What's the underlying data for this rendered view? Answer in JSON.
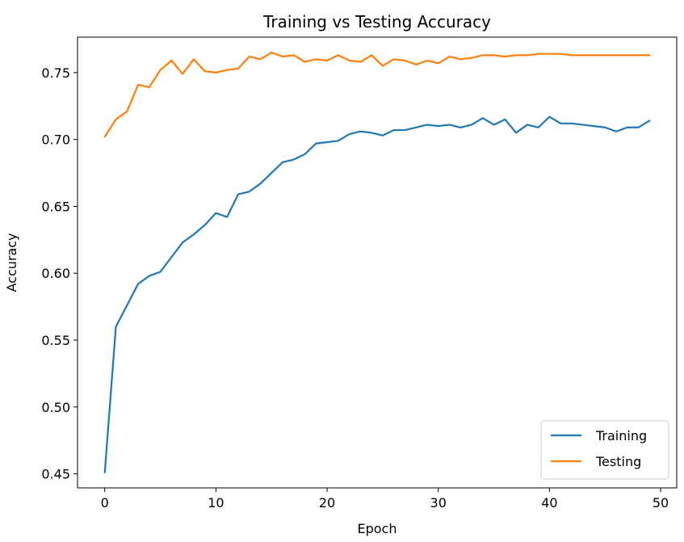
{
  "chart_data": {
    "type": "line",
    "title": "Training vs Testing Accuracy",
    "xlabel": "Epoch",
    "ylabel": "Accuracy",
    "xlim": [
      -2.45,
      51.45
    ],
    "ylim": [
      0.4395,
      0.7765
    ],
    "xticks": [
      0,
      10,
      20,
      30,
      40,
      50
    ],
    "yticks": [
      0.45,
      0.5,
      0.55,
      0.6,
      0.65,
      0.7,
      0.75
    ],
    "ytick_labels": [
      "0.45",
      "0.50",
      "0.55",
      "0.60",
      "0.65",
      "0.70",
      "0.75"
    ],
    "legend_position": "lower-right",
    "grid": false,
    "x": [
      0,
      1,
      2,
      3,
      4,
      5,
      6,
      7,
      8,
      9,
      10,
      11,
      12,
      13,
      14,
      15,
      16,
      17,
      18,
      19,
      20,
      21,
      22,
      23,
      24,
      25,
      26,
      27,
      28,
      29,
      30,
      31,
      32,
      33,
      34,
      35,
      36,
      37,
      38,
      39,
      40,
      41,
      42,
      43,
      44,
      45,
      46,
      47,
      48,
      49
    ],
    "series": [
      {
        "name": "Training",
        "color": "#1f77b4",
        "values": [
          0.451,
          0.56,
          0.576,
          0.592,
          0.598,
          0.601,
          0.612,
          0.623,
          0.629,
          0.636,
          0.645,
          0.642,
          0.659,
          0.661,
          0.667,
          0.675,
          0.683,
          0.685,
          0.689,
          0.697,
          0.698,
          0.699,
          0.704,
          0.706,
          0.705,
          0.703,
          0.707,
          0.707,
          0.709,
          0.711,
          0.71,
          0.711,
          0.709,
          0.711,
          0.716,
          0.711,
          0.715,
          0.705,
          0.711,
          0.709,
          0.717,
          0.712,
          0.712,
          0.711,
          0.71,
          0.709,
          0.706,
          0.709,
          0.709,
          0.714
        ]
      },
      {
        "name": "Testing",
        "color": "#ff7f0e",
        "values": [
          0.702,
          0.715,
          0.721,
          0.741,
          0.739,
          0.752,
          0.759,
          0.749,
          0.76,
          0.751,
          0.75,
          0.752,
          0.753,
          0.762,
          0.76,
          0.765,
          0.762,
          0.763,
          0.758,
          0.76,
          0.759,
          0.763,
          0.759,
          0.758,
          0.763,
          0.755,
          0.76,
          0.759,
          0.756,
          0.759,
          0.757,
          0.762,
          0.76,
          0.761,
          0.763,
          0.763,
          0.762,
          0.763,
          0.763,
          0.764,
          0.764,
          0.764,
          0.763,
          0.763,
          0.763,
          0.763,
          0.763,
          0.763,
          0.763,
          0.763
        ]
      }
    ]
  }
}
